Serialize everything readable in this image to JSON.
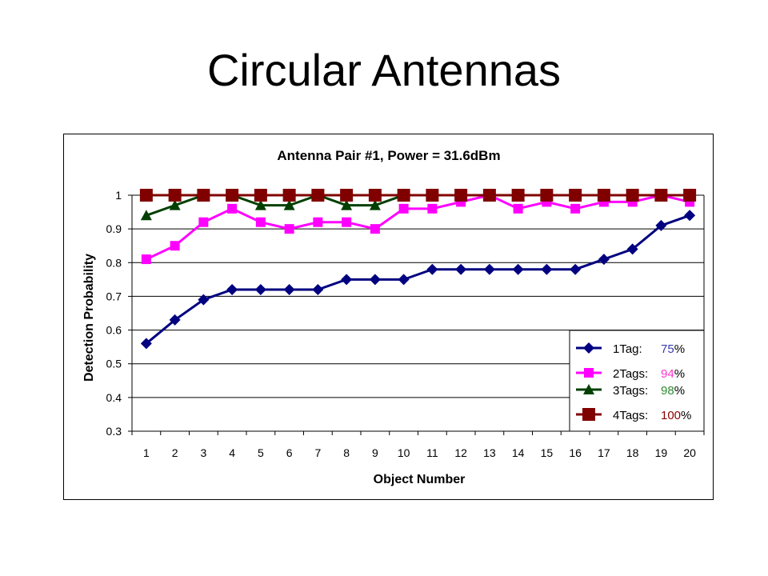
{
  "slide": {
    "title": "Circular Antennas"
  },
  "chart_data": {
    "type": "line",
    "title": "Antenna Pair #1, Power = 31.6dBm",
    "xlabel": "Object Number",
    "ylabel": "Detection Probability",
    "categories": [
      "1",
      "2",
      "3",
      "4",
      "5",
      "6",
      "7",
      "8",
      "9",
      "10",
      "11",
      "12",
      "13",
      "14",
      "15",
      "16",
      "17",
      "18",
      "19",
      "20"
    ],
    "ylim": [
      0.3,
      1
    ],
    "yticks": [
      "0.3",
      "0.4",
      "0.5",
      "0.6",
      "0.7",
      "0.8",
      "0.9",
      "1"
    ],
    "grid": true,
    "legend_position": "bottom-right",
    "series": [
      {
        "name": "1Tag:",
        "pct": "75",
        "pct_color": "#3a3ab0",
        "color": "#000080",
        "marker": "diamond",
        "values": [
          0.56,
          0.63,
          0.69,
          0.72,
          0.72,
          0.72,
          0.72,
          0.75,
          0.75,
          0.75,
          0.78,
          0.78,
          0.78,
          0.78,
          0.78,
          0.78,
          0.81,
          0.84,
          0.91,
          0.94
        ]
      },
      {
        "name": "2Tags:",
        "pct": "94",
        "pct_color": "#ff33cc",
        "color": "#ff00ff",
        "marker": "square",
        "values": [
          0.81,
          0.85,
          0.92,
          0.96,
          0.92,
          0.9,
          0.92,
          0.92,
          0.9,
          0.96,
          0.96,
          0.98,
          1.0,
          0.96,
          0.98,
          0.96,
          0.98,
          0.98,
          1.0,
          0.98
        ]
      },
      {
        "name": "3Tags:",
        "pct": "98",
        "pct_color": "#2e8b2e",
        "color": "#004000",
        "marker": "triangle",
        "values": [
          0.94,
          0.97,
          1.0,
          1.0,
          0.97,
          0.97,
          1.0,
          0.97,
          0.97,
          1.0,
          1.0,
          1.0,
          1.0,
          1.0,
          1.0,
          1.0,
          1.0,
          1.0,
          1.0,
          1.0
        ]
      },
      {
        "name": "4Tags:",
        "pct": "100",
        "pct_color": "#8b0000",
        "color": "#800000",
        "marker": "bigsquare",
        "values": [
          1.0,
          1.0,
          1.0,
          1.0,
          1.0,
          1.0,
          1.0,
          1.0,
          1.0,
          1.0,
          1.0,
          1.0,
          1.0,
          1.0,
          1.0,
          1.0,
          1.0,
          1.0,
          1.0,
          1.0
        ]
      }
    ],
    "percent_sign": "%"
  }
}
